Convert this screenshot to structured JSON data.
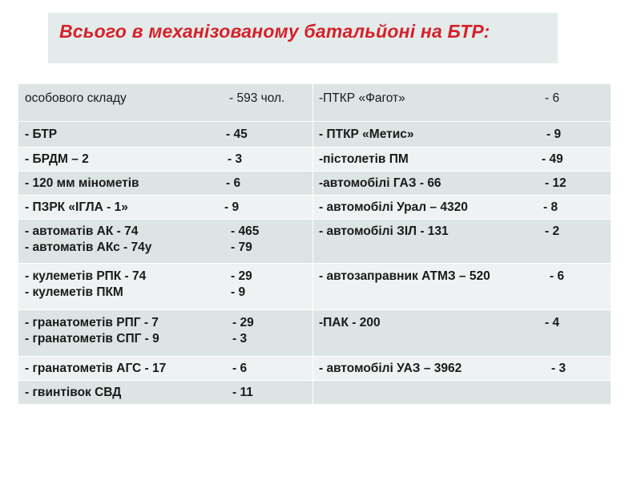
{
  "slide": {
    "title": "Всього в механізованому батальйоні на БТР:"
  },
  "table": {
    "rows": [
      {
        "left": [
          {
            "name": "особового складу",
            "value": "- 593 чол."
          }
        ],
        "right": [
          {
            "name": "-ПТКР  «Фагот»",
            "value": "- 6"
          }
        ]
      },
      {
        "left": [
          {
            "name": "- БТР",
            "value": "- 45"
          }
        ],
        "right": [
          {
            "name": "- ПТКР  «Метис»",
            "value": "- 9"
          }
        ]
      },
      {
        "left": [
          {
            "name": "- БРДМ – 2",
            "value": "- 3"
          }
        ],
        "right": [
          {
            "name": "-пістолетів  ПМ",
            "value": "- 49"
          }
        ]
      },
      {
        "left": [
          {
            "name": "- 120 мм мінометів",
            "value": "- 6"
          }
        ],
        "right": [
          {
            "name": "-автомобілі    ГАЗ - 66",
            "value": "- 12"
          }
        ]
      },
      {
        "left": [
          {
            "name": "- ПЗРК «ІГЛА - 1»",
            "value": "- 9"
          }
        ],
        "right": [
          {
            "name": "- автомобілі   Урал – 4320",
            "value": "- 8"
          }
        ]
      },
      {
        "left": [
          {
            "name": "- автоматів АК - 74",
            "value": "- 465"
          },
          {
            "name": "- автоматів АКс - 74у",
            "value": "- 79"
          }
        ],
        "right": [
          {
            "name": "- автомобілі  ЗІЛ - 131",
            "value": "- 2"
          }
        ]
      },
      {
        "left": [
          {
            "name": "- кулеметів  РПК -  74",
            "value": "- 29"
          },
          {
            "name": "- кулеметів  ПКМ",
            "value": "- 9"
          }
        ],
        "right": [
          {
            "name": "- автозаправник АТМЗ – 520",
            "value": "- 6"
          }
        ]
      },
      {
        "left": [
          {
            "name": "- гранатометів   РПГ - 7",
            "value": "- 29"
          },
          {
            "name": "- гранатометів СПГ - 9",
            "value": "- 3"
          }
        ],
        "right": [
          {
            "name": "-ПАК - 200",
            "value": "- 4"
          }
        ]
      },
      {
        "left": [
          {
            "name": "- гранатометів АГС - 17",
            "value": "- 6"
          }
        ],
        "right": [
          {
            "name": "- автомобілі  УАЗ – 3962",
            "value": "- 3"
          }
        ]
      },
      {
        "left": [
          {
            "name": "- гвинтівок  СВД",
            "value": "- 11"
          }
        ],
        "right": []
      }
    ]
  },
  "colors": {
    "title_text": "#d5212a",
    "title_bg": "#e4ebeb",
    "row_dark": "#dce4e4",
    "row_light": "#eef2f2",
    "text": "#1a1a1a"
  }
}
